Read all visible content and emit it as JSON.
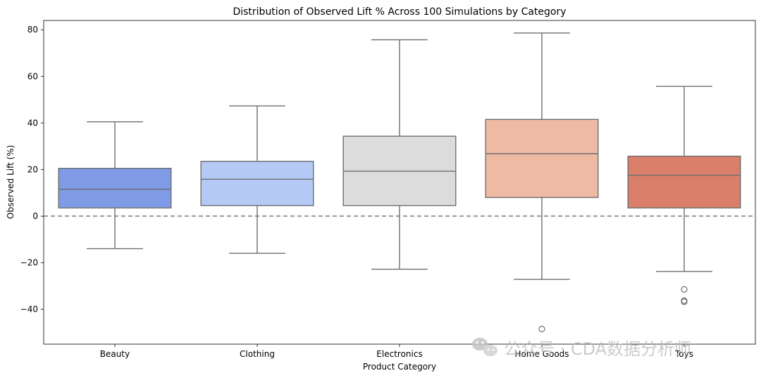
{
  "chart_data": {
    "type": "box",
    "title": "Distribution of Observed Lift % Across 100 Simulations by Category",
    "xlabel": "Product Category",
    "ylabel": "Observed Lift (%)",
    "ylim": [
      -55,
      84
    ],
    "yticks": [
      -40,
      -20,
      0,
      20,
      40,
      60,
      80
    ],
    "ytick_labels": [
      "−40",
      "−20",
      "0",
      "20",
      "40",
      "60",
      "80"
    ],
    "reference_line": 0,
    "grid": false,
    "categories": [
      "Beauty",
      "Clothing",
      "Electronics",
      "Home Goods",
      "Toys"
    ],
    "boxes": [
      {
        "category": "Beauty",
        "whisker_low": -14,
        "q1": 3.5,
        "median": 11.5,
        "q3": 20.5,
        "whisker_high": 40.5,
        "outliers": [],
        "color": "#7f9be6"
      },
      {
        "category": "Clothing",
        "whisker_low": -16,
        "q1": 4.5,
        "median": 15.8,
        "q3": 23.5,
        "whisker_high": 47.3,
        "outliers": [],
        "color": "#b4c9f4"
      },
      {
        "category": "Electronics",
        "whisker_low": -22.8,
        "q1": 4.5,
        "median": 19.3,
        "q3": 34.3,
        "whisker_high": 75.7,
        "outliers": [],
        "color": "#dcdcdc"
      },
      {
        "category": "Home Goods",
        "whisker_low": -27.2,
        "q1": 8,
        "median": 26.8,
        "q3": 41.5,
        "whisker_high": 78.6,
        "outliers": [
          -48.5
        ],
        "color": "#eebaa3"
      },
      {
        "category": "Toys",
        "whisker_low": -23.8,
        "q1": 3.5,
        "median": 17.5,
        "q3": 25.7,
        "whisker_high": 55.7,
        "outliers": [
          -31.5,
          -36.3,
          -36.8
        ],
        "color": "#d97f6a"
      }
    ]
  },
  "watermark": {
    "text": "公众号 · CDA数据分析师",
    "icon": "wechat-icon"
  }
}
